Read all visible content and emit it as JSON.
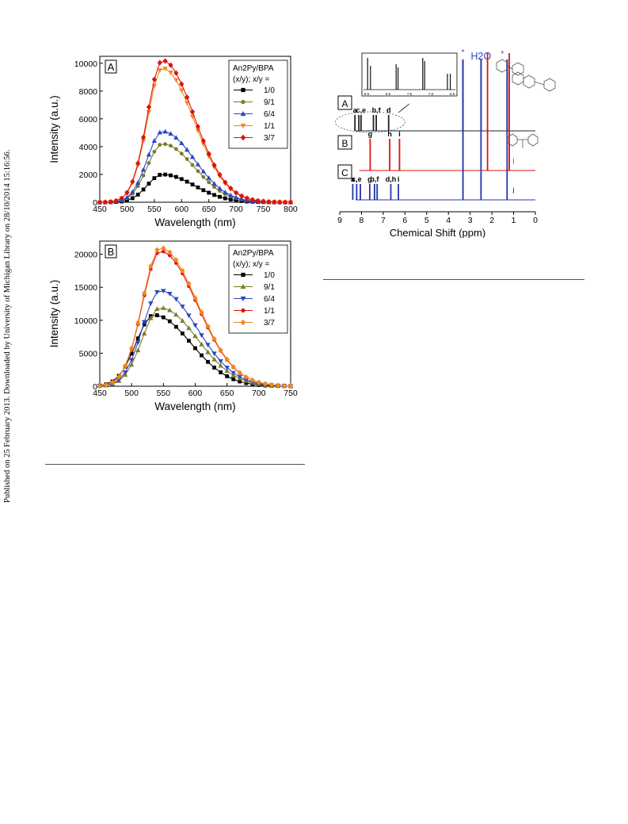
{
  "side_note": "Published on 25 February 2013. Downloaded by University of Michigan Library on 28/10/2014 15:16:56.",
  "chart_data": [
    {
      "type": "line",
      "panel": "A",
      "xlabel": "Wavelength (nm)",
      "ylabel": "Intensity (a.u.)",
      "xlim": [
        450,
        800
      ],
      "ylim": [
        0,
        10500
      ],
      "xticks": [
        450,
        500,
        550,
        600,
        650,
        700,
        750,
        800
      ],
      "yticks": [
        0,
        2000,
        4000,
        6000,
        8000,
        10000
      ],
      "legend_title": [
        "An2Py/BPA",
        "(x/y); x/y ="
      ],
      "legend_position": "top-right",
      "series": [
        {
          "name": "1/0",
          "color": "#000000",
          "marker": "square",
          "peak_x": 565,
          "peak": 2000
        },
        {
          "name": "9/1",
          "color": "#7a7d28",
          "marker": "circle",
          "peak_x": 565,
          "peak": 4200
        },
        {
          "name": "6/4",
          "color": "#2b47c4",
          "marker": "triangle-up",
          "peak_x": 565,
          "peak": 5100
        },
        {
          "name": "1/1",
          "color": "#f08a1c",
          "marker": "triangle-down",
          "peak_x": 565,
          "peak": 9650
        },
        {
          "name": "3/7",
          "color": "#e01010",
          "marker": "diamond",
          "peak_x": 565,
          "peak": 10200
        }
      ]
    },
    {
      "type": "line",
      "panel": "B",
      "xlabel": "Wavelength (nm)",
      "ylabel": "Intensity (a.u.)",
      "xlim": [
        450,
        750
      ],
      "ylim": [
        0,
        22000
      ],
      "xticks": [
        450,
        500,
        550,
        600,
        650,
        700,
        750
      ],
      "yticks": [
        0,
        5000,
        10000,
        15000,
        20000
      ],
      "legend_title": [
        "An2Py/BPA",
        "(x/y); x/y ="
      ],
      "legend_position": "top-right",
      "series": [
        {
          "name": "1/0",
          "color": "#000000",
          "marker": "square",
          "peak_x": 535,
          "peak": 10800
        },
        {
          "name": "9/1",
          "color": "#7a7d28",
          "marker": "triangle-up",
          "peak_x": 545,
          "peak": 11900
        },
        {
          "name": "6/4",
          "color": "#2b47c4",
          "marker": "triangle-down",
          "peak_x": 545,
          "peak": 14500
        },
        {
          "name": "1/1",
          "color": "#e01010",
          "marker": "circle",
          "peak_x": 545,
          "peak": 20500
        },
        {
          "name": "3/7",
          "color": "#f08a1c",
          "marker": "diamond",
          "peak_x": 545,
          "peak": 21000
        }
      ]
    },
    {
      "type": "line",
      "subtype": "nmr-spectrum",
      "xlabel": "Chemical Shift (ppm)",
      "xlim": [
        9,
        0
      ],
      "xticks": [
        9,
        8,
        7,
        6,
        5,
        4,
        3,
        2,
        1,
        0
      ],
      "solvent_label": "H2O",
      "star": "*",
      "inset_ticks": [
        "8.5",
        "8.0",
        "7.5",
        "7.0",
        "6.5"
      ],
      "traces": [
        {
          "name": "A",
          "color": "#222222",
          "peaks": [
            [
              8.3,
              "a"
            ],
            [
              8.12,
              ""
            ],
            [
              8.02,
              "c,e"
            ],
            [
              7.45,
              ""
            ],
            [
              7.32,
              "b,f"
            ],
            [
              6.75,
              "d"
            ]
          ],
          "solvent_peaks": [
            3.33,
            2.5,
            1.3
          ]
        },
        {
          "name": "B",
          "color": "#e01010",
          "peaks": [
            [
              7.6,
              "g"
            ],
            [
              6.7,
              "h"
            ],
            [
              6.25,
              "i"
            ]
          ],
          "solvent_peaks": [
            2.2,
            1.2
          ],
          "tail_label": "j"
        },
        {
          "name": "C",
          "color": "#2233b0",
          "peaks": [
            [
              8.4,
              "a"
            ],
            [
              8.22,
              "c,e"
            ],
            [
              8.05,
              ""
            ],
            [
              7.62,
              "g"
            ],
            [
              7.4,
              "b,f"
            ],
            [
              7.28,
              ""
            ],
            [
              6.65,
              "d,h"
            ],
            [
              6.3,
              "i"
            ]
          ],
          "solvent_peaks": [
            3.33,
            2.5,
            1.3
          ],
          "tail_label": "j"
        }
      ]
    }
  ]
}
